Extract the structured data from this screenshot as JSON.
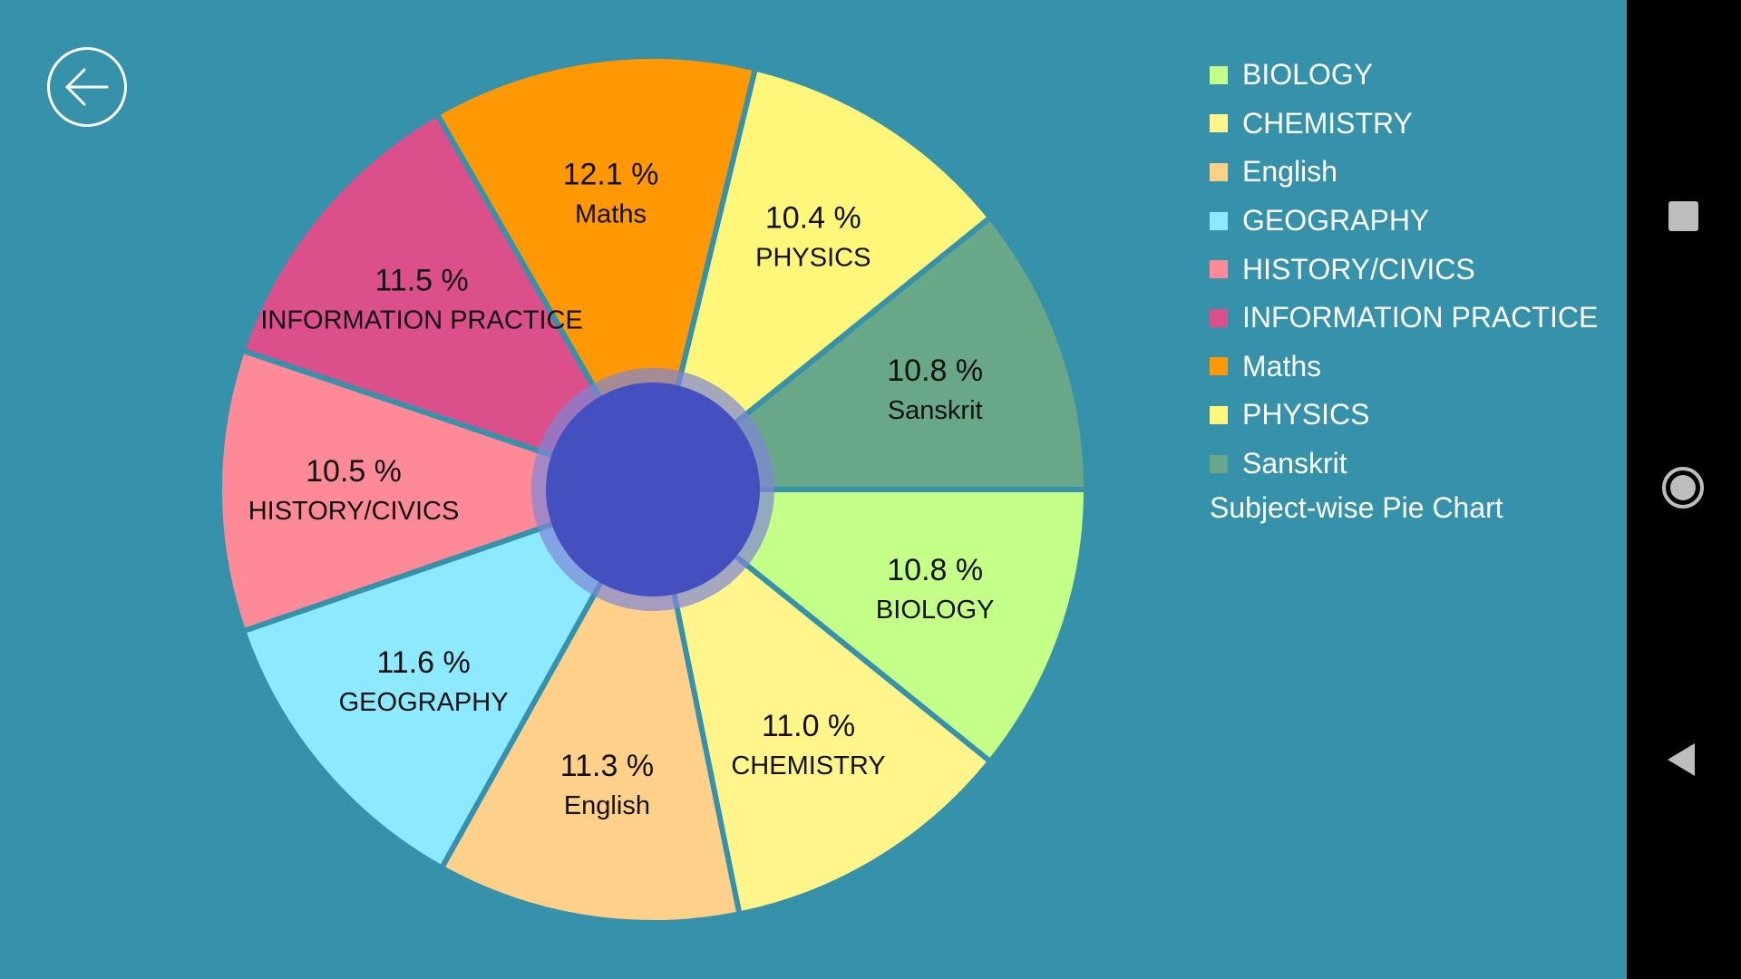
{
  "chart_data": {
    "type": "pie",
    "title": "Subject-wise Pie Chart",
    "unit": "%",
    "slices": [
      {
        "label": "BIOLOGY",
        "value": 10.8,
        "color": "#C4FF87"
      },
      {
        "label": "CHEMISTRY",
        "value": 11.0,
        "color": "#FFF58A"
      },
      {
        "label": "English",
        "value": 11.3,
        "color": "#FFD08A"
      },
      {
        "label": "GEOGRAPHY",
        "value": 11.6,
        "color": "#8CE9FF"
      },
      {
        "label": "HISTORY/CIVICS",
        "value": 10.5,
        "color": "#FF8A97"
      },
      {
        "label": "INFORMATION PRACTICE",
        "value": 11.5,
        "color": "#DB4F8A"
      },
      {
        "label": "Maths",
        "value": 12.1,
        "color": "#FF9803"
      },
      {
        "label": "PHYSICS",
        "value": 10.4,
        "color": "#FFF67A"
      },
      {
        "label": "Sanskrit",
        "value": 10.8,
        "color": "#69A789"
      }
    ],
    "start_angle": "3 o'clock",
    "direction": "clockwise",
    "center_hole_color": "#4550C0",
    "legend_position": "right",
    "background_color": "#3692AB"
  },
  "icons": {
    "back": "back-arrow-icon",
    "nav_recents": "square-icon",
    "nav_home": "circle-icon",
    "nav_back": "triangle-back-icon"
  }
}
